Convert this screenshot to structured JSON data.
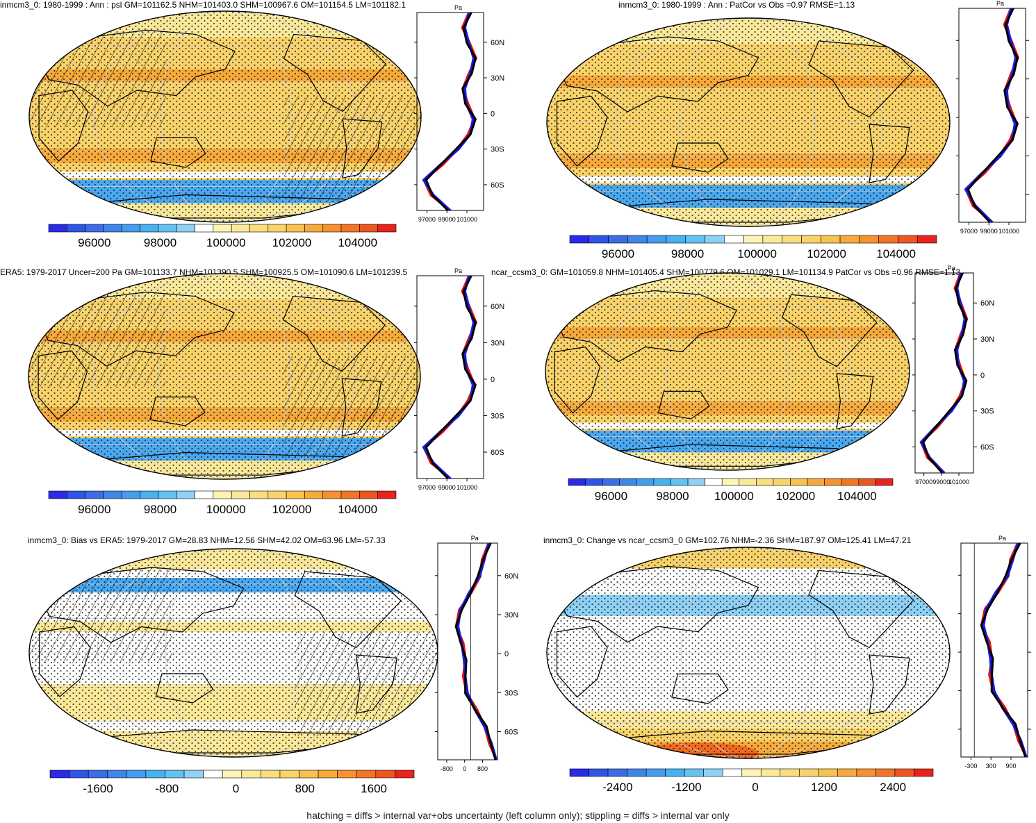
{
  "footer": "hatching = diffs > internal var+obs uncertainty (left column only); stippling = diffs > internal var only",
  "colors": {
    "blue_dark": "#2a2ae8",
    "blue_mid": "#4aa8f0",
    "blue_light": "#8fd0f5",
    "white": "#ffffff",
    "yellow_light": "#fbe99a",
    "yellow": "#f9d36a",
    "orange": "#f7a93a",
    "red": "#e8231e",
    "line_black": "#000000",
    "line_blue": "#1a1ae0",
    "line_red": "#e81010"
  },
  "profile_unit": "Pa",
  "lat_ticks": [
    "60N",
    "30N",
    "0",
    "30S",
    "60S"
  ],
  "chart_data": [
    {
      "type": "map",
      "title": "inmcm3_0: 1980-1999 : Ann : psl GM=101162.5 NHM=101403.0 SHM=100967.6 OM=101154.5 LM=101182.1",
      "colorbar_labels": [
        "96000",
        "98000",
        "100000",
        "102000",
        "104000"
      ],
      "profile_xticks": [
        "97000",
        "99000",
        "101000"
      ],
      "hatching": true,
      "stippling": true
    },
    {
      "type": "map",
      "title": "inmcm3_0: 1980-1999 : Ann : PatCor vs Obs =0.97 RMSE=1.13",
      "colorbar_labels": [
        "96000",
        "98000",
        "100000",
        "102000",
        "104000"
      ],
      "profile_xticks": [
        "97000",
        "99000",
        "101000"
      ],
      "hatching": false,
      "stippling": true
    },
    {
      "type": "map",
      "title": "ERA5: 1979-2017 Uncer=200 Pa GM=101133.7 NHM=101390.5 SHM=100925.5 OM=101090.6 LM=101239.5",
      "colorbar_labels": [
        "96000",
        "98000",
        "100000",
        "102000",
        "104000"
      ],
      "profile_xticks": [
        "97000",
        "99000",
        "101000"
      ],
      "hatching": true,
      "stippling": true
    },
    {
      "type": "map",
      "title": "ncar_ccsm3_0: GM=101059.8 NHM=101405.4 SHM=100779.6 OM=101029.1 LM=101134.9 PatCor vs Obs =0.96 RMSE=1.13",
      "colorbar_labels": [
        "96000",
        "98000",
        "100000",
        "102000",
        "104000"
      ],
      "profile_xticks": [
        "97000",
        "99000",
        "101000"
      ],
      "hatching": false,
      "stippling": true
    },
    {
      "type": "map",
      "title": "inmcm3_0: Bias vs ERA5: 1979-2017 GM=28.83 NHM=12.56 SHM=42.02 OM=63.96 LM=-57.33",
      "colorbar_labels": [
        "-1600",
        "-800",
        "0",
        "800",
        "1600"
      ],
      "profile_xticks": [
        "-800",
        "0",
        "800"
      ],
      "hatching": true,
      "stippling": true
    },
    {
      "type": "map",
      "title": "inmcm3_0: Change vs ncar_ccsm3_0 GM=102.76 NHM=-2.36 SHM=187.97 OM=125.41 LM=47.21",
      "colorbar_labels": [
        "-2400",
        "-1200",
        "0",
        "1200",
        "2400"
      ],
      "profile_xticks": [
        "-300",
        "300",
        "900"
      ],
      "hatching": false,
      "stippling": true
    }
  ]
}
